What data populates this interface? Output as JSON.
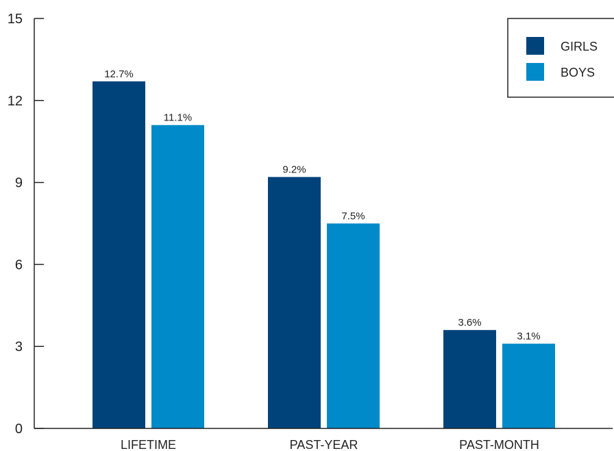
{
  "chart_data": {
    "type": "bar",
    "categories": [
      "LIFETIME",
      "PAST-YEAR",
      "PAST-MONTH"
    ],
    "series": [
      {
        "name": "GIRLS",
        "values": [
          12.7,
          9.2,
          3.6
        ],
        "labels": [
          "12.7%",
          "9.2%",
          "3.6%"
        ],
        "color": "#00437a"
      },
      {
        "name": "BOYS",
        "values": [
          11.1,
          7.5,
          3.1
        ],
        "labels": [
          "11.1%",
          "7.5%",
          "3.1%"
        ],
        "color": "#008ac9"
      }
    ],
    "ylim": [
      0,
      15
    ],
    "yticks": [
      0,
      3,
      6,
      9,
      12,
      15
    ],
    "legend_position": "top-right",
    "grid": false
  }
}
